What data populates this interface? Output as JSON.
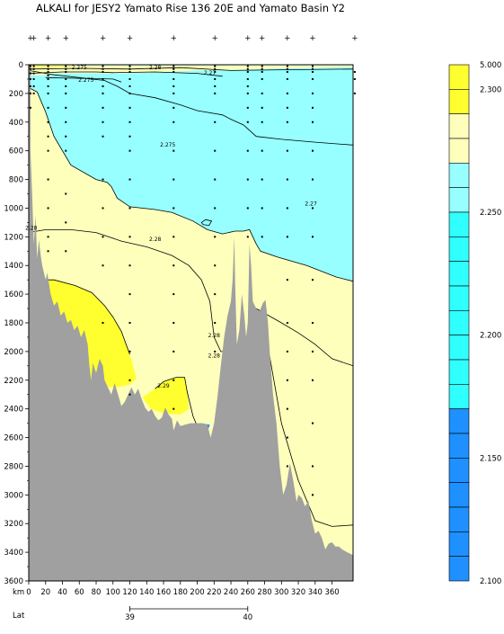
{
  "chart_data": {
    "type": "contour-section",
    "title": "ALKALI for JESY2 Yamato Rise 136 20E and Yamato Basin Y2",
    "xlabel": "km",
    "x_axis_label2": "Lat",
    "xlim": [
      0,
      385
    ],
    "ylim": [
      3600,
      0
    ],
    "x_ticks": [
      0,
      20,
      40,
      60,
      80,
      100,
      120,
      140,
      160,
      180,
      200,
      220,
      240,
      260,
      280,
      300,
      320,
      340,
      360
    ],
    "y_ticks": [
      0,
      200,
      400,
      600,
      800,
      1000,
      1200,
      1400,
      1600,
      1800,
      2000,
      2200,
      2400,
      2600,
      2800,
      3000,
      3200,
      3400,
      3600
    ],
    "lat_ticks": [
      {
        "km": 120,
        "label": "39"
      },
      {
        "km": 260,
        "label": "40"
      }
    ],
    "station_km": [
      2,
      6,
      23,
      44,
      88,
      120,
      172,
      221,
      260,
      277,
      307,
      337,
      387
    ],
    "contour_labels": [
      {
        "text": "2.275",
        "km": 60,
        "depth": 30
      },
      {
        "text": "2.275",
        "km": 68,
        "depth": 120
      },
      {
        "text": "2.28",
        "km": 150,
        "depth": 30
      },
      {
        "text": "2.27",
        "km": 215,
        "depth": 70
      },
      {
        "text": "2.275",
        "km": 165,
        "depth": 570
      },
      {
        "text": "2.27",
        "km": 335,
        "depth": 980
      },
      {
        "text": "2.28",
        "km": 3,
        "depth": 1150
      },
      {
        "text": "2.28",
        "km": 150,
        "depth": 1230
      },
      {
        "text": "2.28",
        "km": 220,
        "depth": 1900
      },
      {
        "text": "2.28",
        "km": 220,
        "depth": 2040
      },
      {
        "text": "2.29",
        "km": 160,
        "depth": 2250
      }
    ],
    "colorbar": {
      "min": 2.1,
      "max": 2.3,
      "top_label": "5.000",
      "labels": [
        "2.300",
        "2.250",
        "2.200",
        "2.150",
        "2.100"
      ],
      "label_values": [
        2.3,
        2.25,
        2.2,
        2.15,
        2.1
      ],
      "bands": [
        {
          "from": 2.3,
          "to": 5.0,
          "color": "#ffff30"
        },
        {
          "from": 2.29,
          "to": 2.3,
          "color": "#ffff30"
        },
        {
          "from": 2.28,
          "to": 2.29,
          "color": "#ffffbc"
        },
        {
          "from": 2.27,
          "to": 2.28,
          "color": "#ffffbc"
        },
        {
          "from": 2.26,
          "to": 2.27,
          "color": "#97ffff"
        },
        {
          "from": 2.25,
          "to": 2.26,
          "color": "#97ffff"
        },
        {
          "from": 2.24,
          "to": 2.25,
          "color": "#30ffff"
        },
        {
          "from": 2.23,
          "to": 2.24,
          "color": "#30ffff"
        },
        {
          "from": 2.22,
          "to": 2.23,
          "color": "#30ffff"
        },
        {
          "from": 2.21,
          "to": 2.22,
          "color": "#30ffff"
        },
        {
          "from": 2.2,
          "to": 2.21,
          "color": "#30ffff"
        },
        {
          "from": 2.19,
          "to": 2.2,
          "color": "#30ffff"
        },
        {
          "from": 2.18,
          "to": 2.19,
          "color": "#30ffff"
        },
        {
          "from": 2.17,
          "to": 2.18,
          "color": "#30ffff"
        },
        {
          "from": 2.16,
          "to": 2.17,
          "color": "#1e90ff"
        },
        {
          "from": 2.15,
          "to": 2.16,
          "color": "#1e90ff"
        },
        {
          "from": 2.14,
          "to": 2.15,
          "color": "#1e90ff"
        },
        {
          "from": 2.13,
          "to": 2.14,
          "color": "#1e90ff"
        },
        {
          "from": 2.12,
          "to": 2.13,
          "color": "#1e90ff"
        },
        {
          "from": 2.11,
          "to": 2.12,
          "color": "#1e90ff"
        },
        {
          "from": 2.1,
          "to": 2.11,
          "color": "#1e90ff"
        }
      ]
    },
    "colors": {
      "above_2.29": "#ffff30",
      "2.27-2.29": "#ffffbc",
      "2.25-2.27": "#97ffff",
      "below_2.17": "#1e90ff",
      "bathymetry": "#a0a0a0"
    }
  }
}
